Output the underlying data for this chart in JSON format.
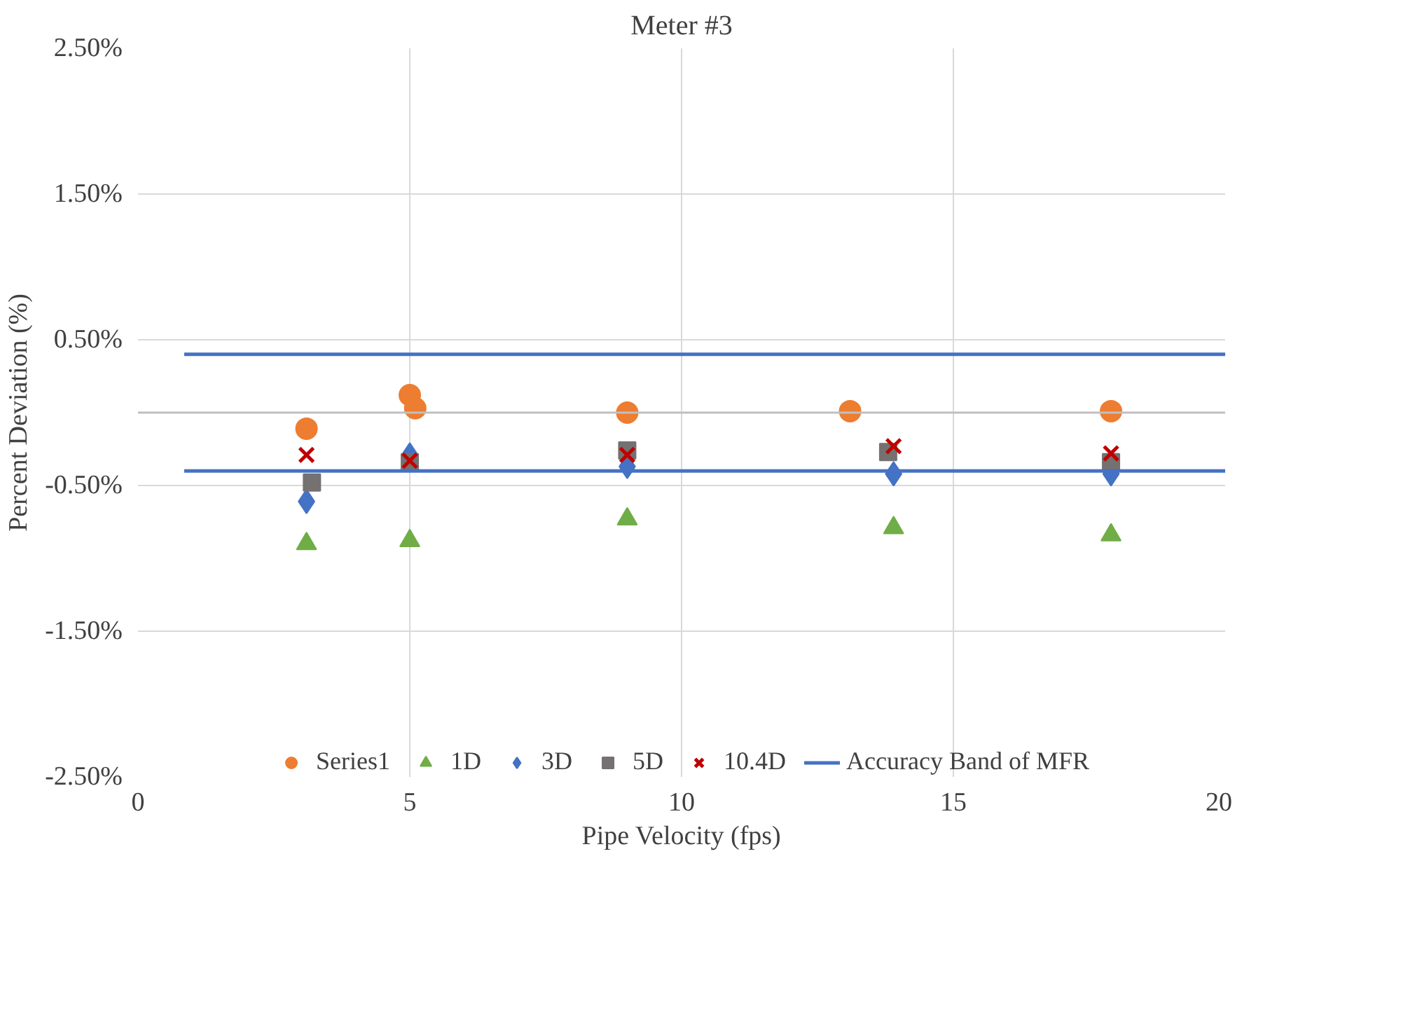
{
  "chart_data": {
    "type": "scatter",
    "title": "Meter #3",
    "xlabel": "Pipe Velocity (fps)",
    "ylabel": "Percent Deviation (%)",
    "xlim": [
      0,
      20
    ],
    "xticks": [
      0,
      5,
      10,
      15,
      20
    ],
    "ylim": [
      -2.5,
      2.5
    ],
    "yticks": [
      {
        "value": -2.5,
        "label": "-2.50%"
      },
      {
        "value": -1.5,
        "label": "-1.50%"
      },
      {
        "value": -0.5,
        "label": "-0.50%"
      },
      {
        "value": 0.5,
        "label": "0.50%"
      },
      {
        "value": 1.5,
        "label": "1.50%"
      },
      {
        "value": 2.5,
        "label": "2.50%"
      }
    ],
    "grid": true,
    "legend": "bottom",
    "ref_lines": [
      {
        "axis": "y",
        "value": 0,
        "color": "#bfbfbf"
      }
    ],
    "series": [
      {
        "name": "Series1",
        "color": "#ed7d31",
        "marker": "circle",
        "x": [
          3.1,
          5.0,
          5.1,
          9.0,
          13.1,
          17.9
        ],
        "values": [
          -0.11,
          0.12,
          0.03,
          0.0,
          0.01,
          0.01
        ]
      },
      {
        "name": "1D",
        "color": "#70ad47",
        "marker": "triangle",
        "x": [
          3.1,
          5.0,
          9.0,
          13.9,
          17.9
        ],
        "values": [
          -0.9,
          -0.88,
          -0.73,
          -0.79,
          -0.84
        ]
      },
      {
        "name": "3D",
        "color": "#4472c4",
        "marker": "diamond",
        "x": [
          3.1,
          5.0,
          9.0,
          13.9,
          17.9
        ],
        "values": [
          -0.61,
          -0.29,
          -0.37,
          -0.42,
          -0.42
        ]
      },
      {
        "name": "5D",
        "color": "#767171",
        "marker": "square",
        "x": [
          3.2,
          5.0,
          9.0,
          13.8,
          17.9
        ],
        "values": [
          -0.48,
          -0.34,
          -0.26,
          -0.27,
          -0.34
        ]
      },
      {
        "name": "10.4D",
        "color": "#c00000",
        "marker": "cross",
        "x": [
          3.1,
          5.0,
          9.0,
          13.9,
          17.9
        ],
        "values": [
          -0.29,
          -0.33,
          -0.29,
          -0.23,
          -0.28
        ]
      },
      {
        "name": "Accuracy Band of MFR",
        "type": "line",
        "color": "#4472c4",
        "marker": "none",
        "x": [
          0.85,
          20
        ],
        "values": [
          0.4,
          0.4
        ]
      },
      {
        "type": "line",
        "color": "#4472c4",
        "marker": "none",
        "x": [
          0.85,
          20
        ],
        "values": [
          -0.4,
          -0.4
        ]
      }
    ]
  }
}
